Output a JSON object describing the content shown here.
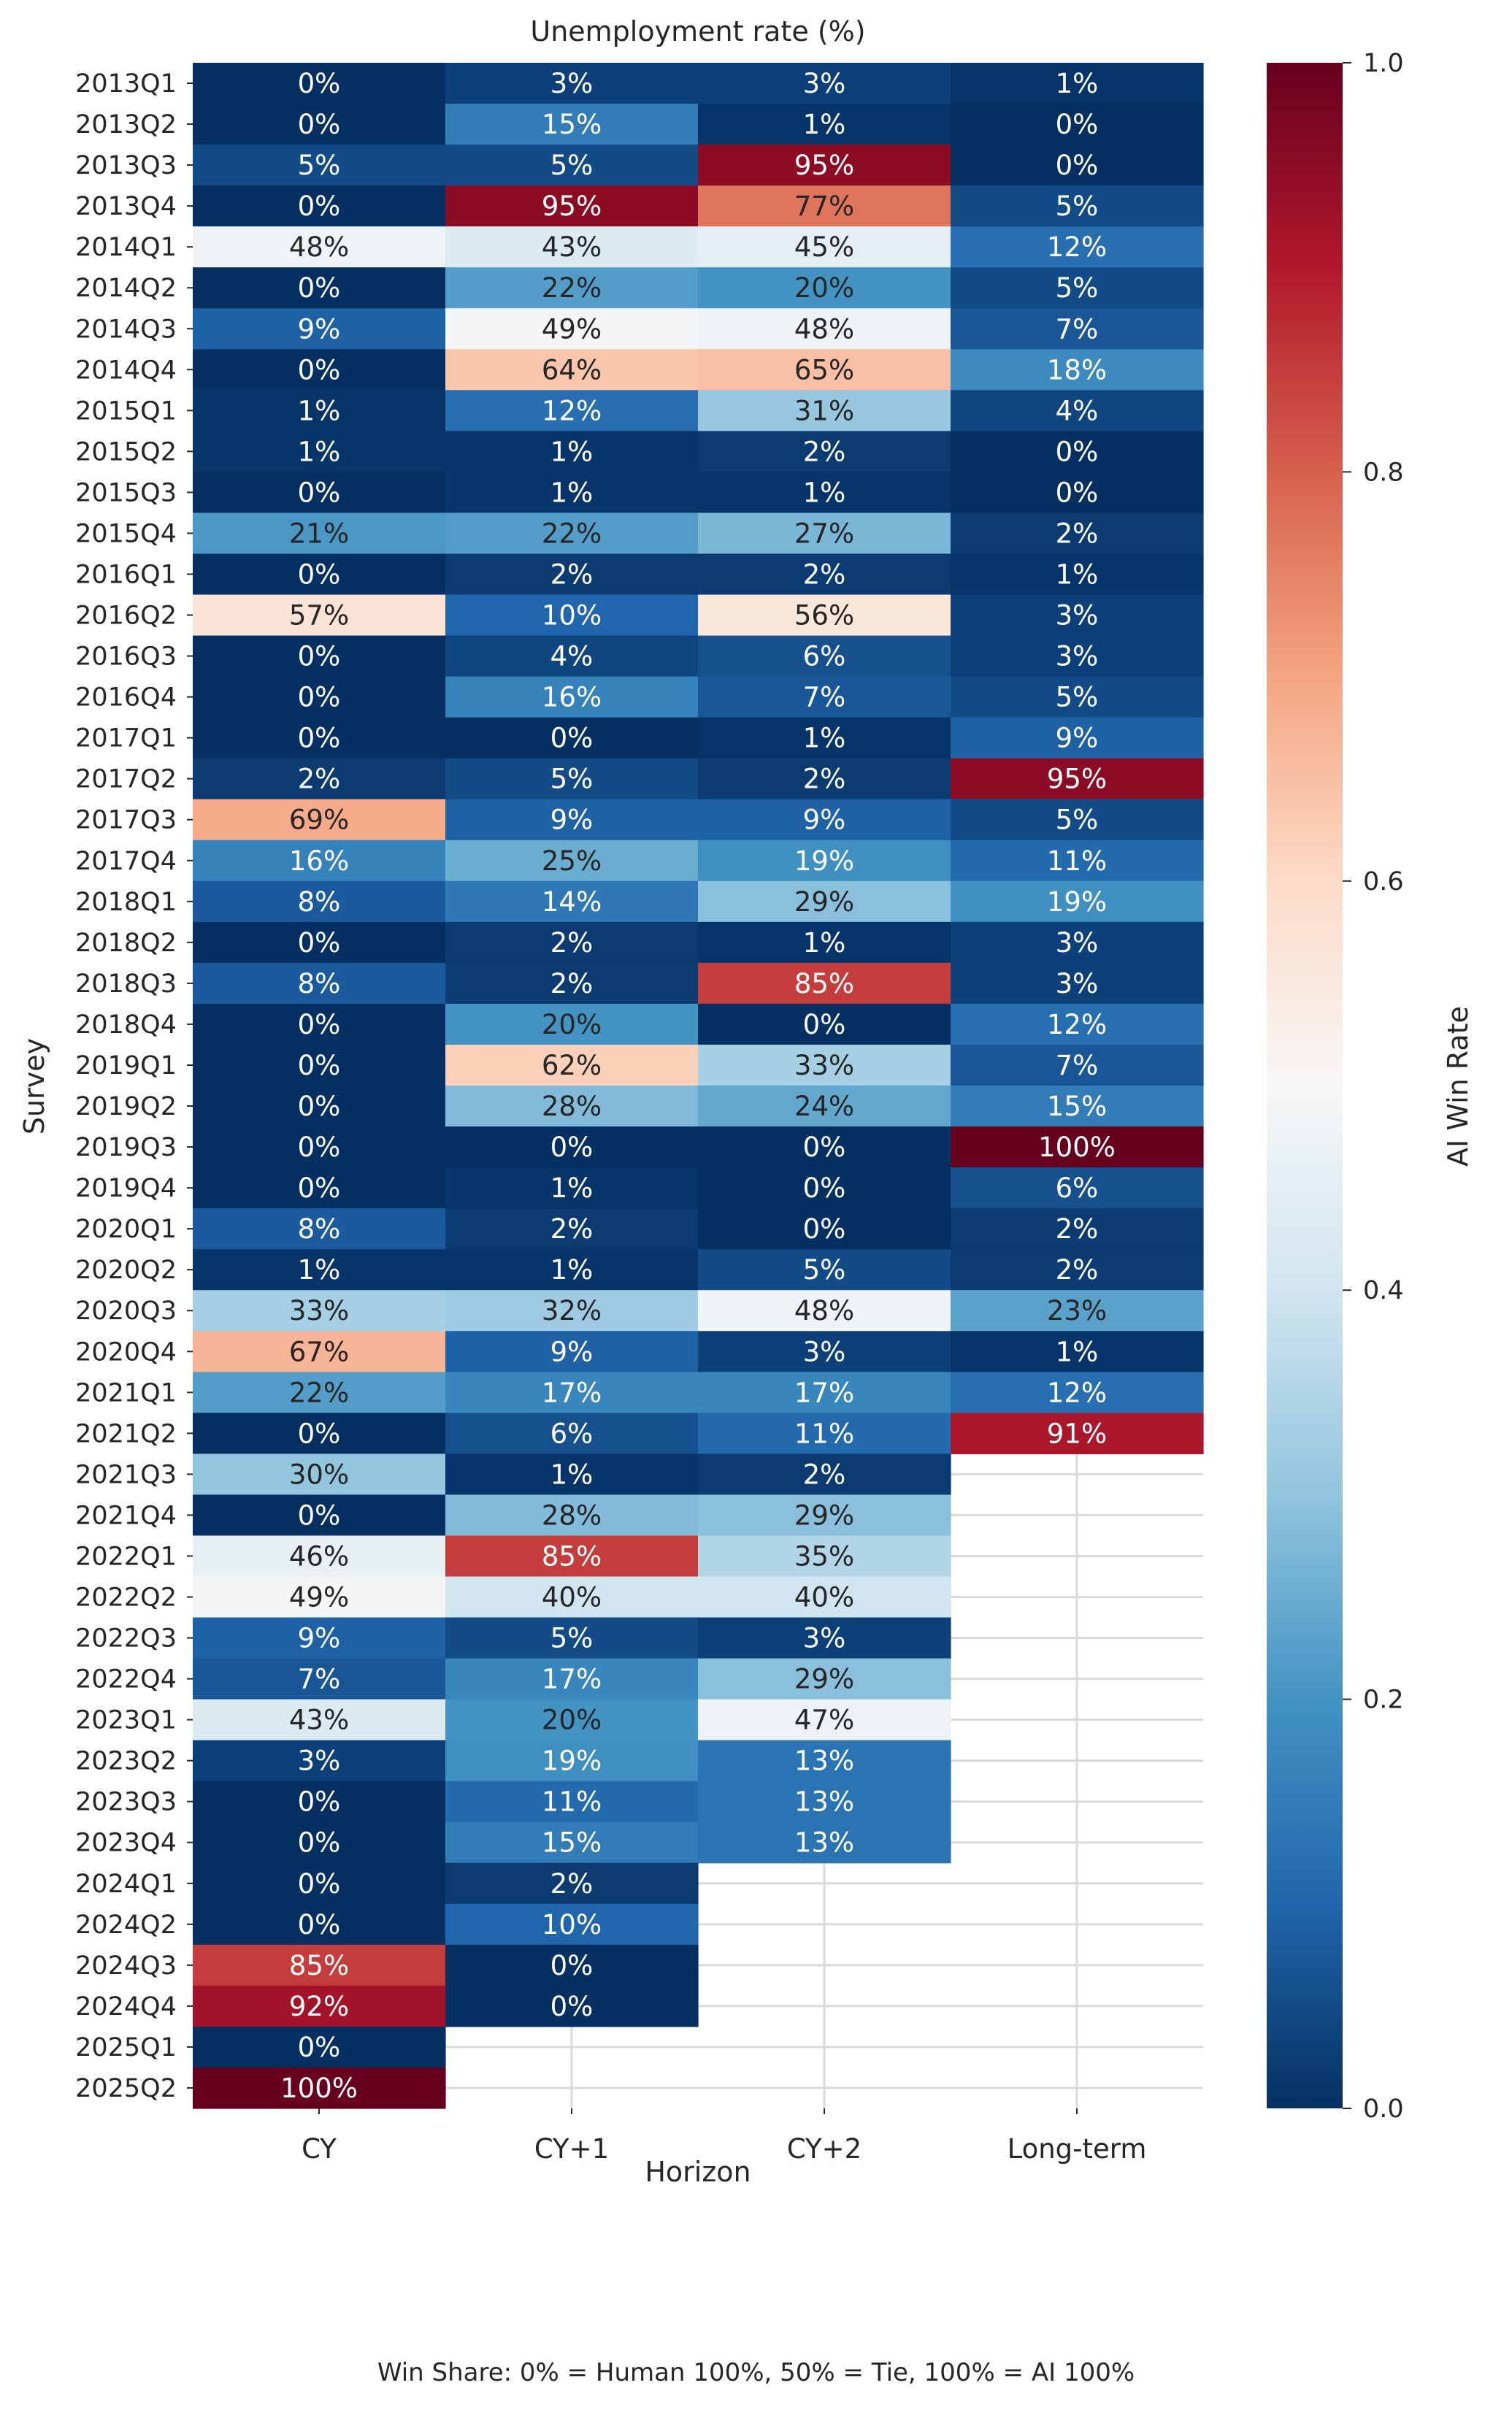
{
  "chart_data": {
    "type": "heatmap",
    "title": "Unemployment rate (%)",
    "xlabel": "Horizon",
    "ylabel": "Survey",
    "colorbar_label": "AI Win Rate",
    "colorbar_ticks": [
      "0.0",
      "0.2",
      "0.4",
      "0.6",
      "0.8",
      "1.0"
    ],
    "colorbar_range": [
      0,
      1
    ],
    "colormap": "RdBu_r",
    "columns": [
      "CY",
      "CY+1",
      "CY+2",
      "Long-term"
    ],
    "rows": [
      "2013Q1",
      "2013Q2",
      "2013Q3",
      "2013Q4",
      "2014Q1",
      "2014Q2",
      "2014Q3",
      "2014Q4",
      "2015Q1",
      "2015Q2",
      "2015Q3",
      "2015Q4",
      "2016Q1",
      "2016Q2",
      "2016Q3",
      "2016Q4",
      "2017Q1",
      "2017Q2",
      "2017Q3",
      "2017Q4",
      "2018Q1",
      "2018Q2",
      "2018Q3",
      "2018Q4",
      "2019Q1",
      "2019Q2",
      "2019Q3",
      "2019Q4",
      "2020Q1",
      "2020Q2",
      "2020Q3",
      "2020Q4",
      "2021Q1",
      "2021Q2",
      "2021Q3",
      "2021Q4",
      "2022Q1",
      "2022Q2",
      "2022Q3",
      "2022Q4",
      "2023Q1",
      "2023Q2",
      "2023Q3",
      "2023Q4",
      "2024Q1",
      "2024Q2",
      "2024Q3",
      "2024Q4",
      "2025Q1",
      "2025Q2"
    ],
    "values": [
      [
        0,
        3,
        3,
        1
      ],
      [
        0,
        15,
        1,
        0
      ],
      [
        5,
        5,
        95,
        0
      ],
      [
        0,
        95,
        77,
        5
      ],
      [
        48,
        43,
        45,
        12
      ],
      [
        0,
        22,
        20,
        5
      ],
      [
        9,
        49,
        48,
        7
      ],
      [
        0,
        64,
        65,
        18
      ],
      [
        1,
        12,
        31,
        4
      ],
      [
        1,
        1,
        2,
        0
      ],
      [
        0,
        1,
        1,
        0
      ],
      [
        21,
        22,
        27,
        2
      ],
      [
        0,
        2,
        2,
        1
      ],
      [
        57,
        10,
        56,
        3
      ],
      [
        0,
        4,
        6,
        3
      ],
      [
        0,
        16,
        7,
        5
      ],
      [
        0,
        0,
        1,
        9
      ],
      [
        2,
        5,
        2,
        95
      ],
      [
        69,
        9,
        9,
        5
      ],
      [
        16,
        25,
        19,
        11
      ],
      [
        8,
        14,
        29,
        19
      ],
      [
        0,
        2,
        1,
        3
      ],
      [
        8,
        2,
        85,
        3
      ],
      [
        0,
        20,
        0,
        12
      ],
      [
        0,
        62,
        33,
        7
      ],
      [
        0,
        28,
        24,
        15
      ],
      [
        0,
        0,
        0,
        100
      ],
      [
        0,
        1,
        0,
        6
      ],
      [
        8,
        2,
        0,
        2
      ],
      [
        1,
        1,
        5,
        2
      ],
      [
        33,
        32,
        48,
        23
      ],
      [
        67,
        9,
        3,
        1
      ],
      [
        22,
        17,
        17,
        12
      ],
      [
        0,
        6,
        11,
        91
      ],
      [
        30,
        1,
        2,
        null
      ],
      [
        0,
        28,
        29,
        null
      ],
      [
        46,
        85,
        35,
        null
      ],
      [
        49,
        40,
        40,
        null
      ],
      [
        9,
        5,
        3,
        null
      ],
      [
        7,
        17,
        29,
        null
      ],
      [
        43,
        20,
        47,
        null
      ],
      [
        3,
        19,
        13,
        null
      ],
      [
        0,
        11,
        13,
        null
      ],
      [
        0,
        15,
        13,
        null
      ],
      [
        0,
        2,
        null,
        null
      ],
      [
        0,
        10,
        null,
        null
      ],
      [
        85,
        0,
        null,
        null
      ],
      [
        92,
        0,
        null,
        null
      ],
      [
        0,
        null,
        null,
        null
      ],
      [
        100,
        null,
        null,
        null
      ]
    ],
    "value_format": "percent"
  },
  "footer": {
    "caption": "Win Share: 0% = Human 100%, 50% = Tie, 100% = AI 100%"
  }
}
